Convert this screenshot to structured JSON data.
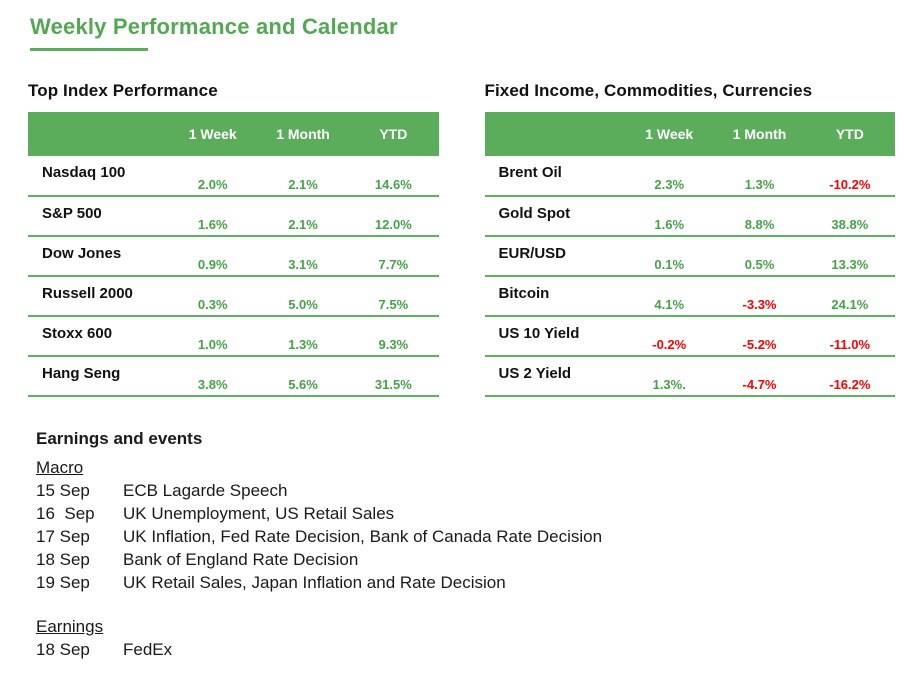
{
  "title": "Weekly Performance and Calendar",
  "colors": {
    "header_green": "#5bad5c",
    "positive_green": "#45a347",
    "negative_red": "#ff0000"
  },
  "left_table": {
    "title": "Top Index Performance",
    "columns": [
      "1 Week",
      "1 Month",
      "YTD"
    ],
    "rows": [
      {
        "label": "Nasdaq 100",
        "v1": "2.0%",
        "v2": "2.1%",
        "v3": "14.6%"
      },
      {
        "label": "S&P 500",
        "v1": "1.6%",
        "v2": "2.1%",
        "v3": "12.0%"
      },
      {
        "label": "Dow Jones",
        "v1": "0.9%",
        "v2": "3.1%",
        "v3": "7.7%"
      },
      {
        "label": "Russell 2000",
        "v1": "0.3%",
        "v2": "5.0%",
        "v3": "7.5%"
      },
      {
        "label": "Stoxx 600",
        "v1": "1.0%",
        "v2": "1.3%",
        "v3": "9.3%"
      },
      {
        "label": "Hang Seng",
        "v1": "3.8%",
        "v2": "5.6%",
        "v3": "31.5%"
      }
    ]
  },
  "right_table": {
    "title": "Fixed Income, Commodities, Currencies",
    "columns": [
      "1 Week",
      "1 Month",
      "YTD"
    ],
    "rows": [
      {
        "label": "Brent Oil",
        "v1": "2.3%",
        "v2": "1.3%",
        "v3": "-10.2%"
      },
      {
        "label": "Gold Spot",
        "v1": "1.6%",
        "v2": "8.8%",
        "v3": "38.8%"
      },
      {
        "label": "EUR/USD",
        "v1": "0.1%",
        "v2": "0.5%",
        "v3": "13.3%"
      },
      {
        "label": "Bitcoin",
        "v1": "4.1%",
        "v2": "-3.3%",
        "v3": "24.1%"
      },
      {
        "label": "US 10 Yield",
        "v1": "-0.2%",
        "v2": "-5.2%",
        "v3": "-11.0%"
      },
      {
        "label": "US 2 Yield",
        "v1": "1.3%.",
        "v2": "-4.7%",
        "v3": "-16.2%"
      }
    ]
  },
  "events": {
    "title": "Earnings and events",
    "macro_heading": "Macro",
    "macro_items": [
      {
        "date": "15 Sep",
        "event": "ECB Lagarde Speech"
      },
      {
        "date": "16  Sep",
        "event": "UK Unemployment, US Retail Sales"
      },
      {
        "date": "17 Sep",
        "event": "UK Inflation, Fed Rate Decision, Bank of Canada Rate Decision"
      },
      {
        "date": "18 Sep",
        "event": "Bank of England Rate Decision"
      },
      {
        "date": "19 Sep",
        "event": "UK Retail Sales, Japan Inflation and Rate Decision"
      }
    ],
    "earnings_heading": "Earnings",
    "earnings_items": [
      {
        "date": "18 Sep",
        "event": "FedEx"
      }
    ]
  }
}
